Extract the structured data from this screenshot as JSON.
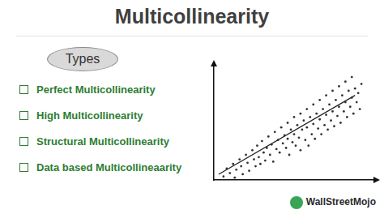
{
  "header": {
    "title": "Multicollinearity"
  },
  "types": {
    "label": "Types",
    "items": [
      "Perfect Multicollinearity",
      "High Multicollinearity",
      "Structural Multicollinearity",
      "Data based Multicollineaarity"
    ]
  },
  "brand": "WallStreetMojo",
  "chart_data": {
    "type": "scatter",
    "tick_labels": false,
    "grid": false,
    "xlim": [
      0,
      100
    ],
    "ylim": [
      0,
      100
    ],
    "series": [
      {
        "type": "scatter",
        "color": "#333333",
        "marker": "circle",
        "x": [
          6,
          8,
          10,
          12,
          13,
          14,
          16,
          17,
          18,
          20,
          21,
          22,
          24,
          25,
          26,
          27,
          28,
          29,
          30,
          31,
          32,
          33,
          34,
          35,
          36,
          37,
          38,
          39,
          40,
          41,
          42,
          43,
          44,
          45,
          46,
          46,
          47,
          48,
          49,
          50,
          50,
          51,
          52,
          53,
          54,
          54,
          55,
          56,
          57,
          58,
          58,
          59,
          60,
          61,
          62,
          62,
          63,
          64,
          65,
          66,
          66,
          67,
          68,
          69,
          70,
          70,
          71,
          72,
          73,
          74,
          74,
          75,
          76,
          77,
          78,
          78,
          79,
          80,
          81,
          82,
          82,
          83,
          84,
          85,
          86,
          86,
          87,
          88,
          89,
          90,
          91,
          92
        ],
        "values": [
          3,
          10,
          6,
          14,
          2,
          9,
          18,
          12,
          5,
          22,
          15,
          8,
          26,
          18,
          12,
          30,
          20,
          14,
          34,
          24,
          17,
          28,
          38,
          22,
          31,
          16,
          42,
          27,
          35,
          24,
          46,
          32,
          39,
          28,
          50,
          36,
          22,
          44,
          33,
          55,
          40,
          30,
          48,
          37,
          58,
          26,
          44,
          52,
          35,
          62,
          46,
          30,
          55,
          40,
          66,
          49,
          36,
          58,
          45,
          70,
          53,
          40,
          62,
          48,
          74,
          57,
          44,
          66,
          52,
          78,
          60,
          47,
          70,
          56,
          82,
          64,
          50,
          74,
          60,
          86,
          68,
          55,
          78,
          64,
          90,
          72,
          58,
          80,
          68,
          76,
          62,
          84
        ]
      },
      {
        "type": "line",
        "color": "#222222",
        "line_style": "solid",
        "x": [
          3,
          88
        ],
        "values": [
          5,
          74
        ]
      }
    ]
  }
}
